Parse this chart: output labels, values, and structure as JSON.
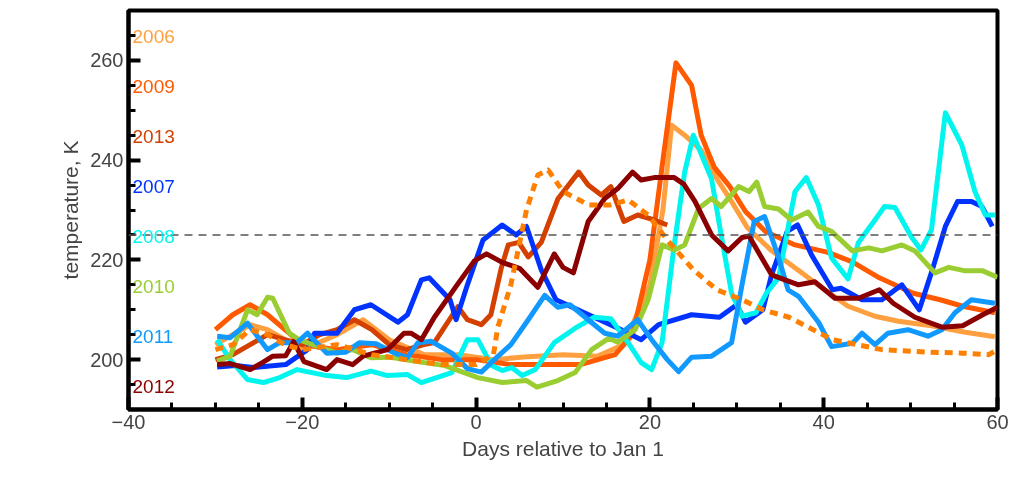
{
  "chart_data": {
    "type": "line",
    "xlabel": "Days relative to Jan 1",
    "ylabel": "temperature, K",
    "xlim": [
      -40,
      60
    ],
    "ylim": [
      190,
      270
    ],
    "xticks": [
      -40,
      -20,
      0,
      20,
      40,
      60
    ],
    "yticks": [
      200,
      220,
      240,
      260
    ],
    "grid": false,
    "legend": "left",
    "marker": "none",
    "line_style": "solid",
    "ref_lines": [
      {
        "axis": "y",
        "value": 225,
        "color": "#555555",
        "line_style": "dashed"
      }
    ],
    "series": [
      {
        "name": "2006",
        "color": "#ffa040",
        "x": [
          -30,
          -28,
          -26,
          -24,
          -22,
          -20,
          -16,
          -13,
          -10,
          -6,
          -2,
          2,
          6,
          10,
          14,
          17,
          18,
          20,
          21.5,
          22.5,
          24,
          25.9,
          27.8,
          29.4,
          31.2,
          33.9,
          37,
          40.1,
          42.8,
          45.9,
          48.6,
          52.4,
          56.3,
          59.7
        ],
        "values": [
          203,
          205,
          207,
          206,
          204,
          202,
          205,
          208,
          204,
          201,
          201,
          200,
          200.6,
          201,
          200.7,
          203,
          207,
          215,
          230,
          247,
          245,
          242,
          236,
          231.7,
          226.5,
          222,
          218,
          214,
          210.7,
          208.7,
          207.7,
          206.8,
          205.5,
          204.6
        ]
      },
      {
        "name": "2009",
        "color": "#ff5a00",
        "x": [
          -30,
          -28,
          -26,
          -24,
          -22,
          -20,
          -16,
          -12,
          -8,
          -4,
          0,
          4,
          8,
          12,
          16,
          18,
          20,
          21.5,
          23,
          24.8,
          25.9,
          27.4,
          29.2,
          31,
          33.3,
          36.7,
          40.5,
          43.3,
          46.4,
          50.3,
          53.4,
          56,
          59.7
        ],
        "values": [
          206,
          209,
          211,
          209,
          206,
          203,
          202,
          203,
          201,
          200,
          200,
          199,
          199,
          199,
          201,
          205,
          220,
          240,
          259.5,
          255,
          245,
          238.6,
          234.7,
          229.7,
          225.7,
          223,
          221.5,
          219.6,
          216.4,
          213.3,
          212,
          210.7,
          209.4
        ]
      },
      {
        "name": "2013",
        "color": "#d44000",
        "x": [
          -30,
          -28,
          -26,
          -24,
          -22,
          -20,
          -18,
          -16,
          -14,
          -12,
          -10,
          -8,
          -6,
          -4.8,
          -2.1,
          -1,
          0.6,
          1.7,
          2.9,
          3.7,
          4.9,
          6,
          7.5,
          9.4,
          11.8,
          12.9,
          14.4,
          15.5,
          17,
          18.6,
          20.5,
          22
        ],
        "values": [
          200,
          201,
          203,
          205,
          204,
          203,
          205,
          206,
          208,
          206,
          203,
          202,
          203,
          203.4,
          210.6,
          208,
          207,
          209,
          218.4,
          223,
          223.5,
          220.6,
          223.5,
          232.2,
          237.6,
          235,
          233,
          234.7,
          227.7,
          229,
          228,
          227
        ]
      },
      {
        "name": "2007",
        "color": "#0033ff",
        "x": [
          -29.8,
          -27.7,
          -25.6,
          -21.9,
          -19.4,
          -18.6,
          -16,
          -14,
          -12.1,
          -9,
          -7.9,
          -6.3,
          -5.4,
          -3,
          -2.3,
          -1,
          0.8,
          3,
          4.6,
          5.8,
          7.5,
          9.2,
          16.7,
          19,
          21,
          24.8,
          28,
          30,
          31,
          33,
          34,
          35.8,
          37,
          38.6,
          41,
          42,
          44.4,
          46.7,
          49,
          51,
          52.5,
          54,
          55.4,
          57,
          58.2,
          59.4
        ],
        "values": [
          198.5,
          198.8,
          198.4,
          199,
          202,
          205.3,
          205.3,
          210,
          211,
          207.5,
          209,
          216,
          216.4,
          212,
          208,
          215,
          224,
          227,
          225,
          226.7,
          218,
          212,
          206,
          204,
          207,
          209,
          208.5,
          211,
          207.5,
          210,
          217,
          225.7,
          227,
          221,
          214,
          214.3,
          212,
          212,
          215,
          210,
          218,
          226.7,
          231.7,
          231.7,
          230.7,
          226.7
        ]
      },
      {
        "name": "2008",
        "color": "#00f5ee",
        "x": [
          -29.8,
          -28.3,
          -26.3,
          -24.5,
          -22.6,
          -20.6,
          -17.2,
          -14.9,
          -12.1,
          -10.2,
          -7.9,
          -6.3,
          -2.8,
          -1,
          0.2,
          1.8,
          3,
          4.1,
          5.3,
          6.8,
          9,
          11.4,
          13.6,
          15.5,
          17.5,
          19,
          20.2,
          21.4,
          22.8,
          24,
          25,
          27.1,
          28.2,
          29.4,
          30.6,
          32.2,
          33.4,
          34.8,
          36.7,
          38,
          39.4,
          40.9,
          42.8,
          44,
          45.9,
          47,
          48.2,
          50.1,
          51.2,
          52.4,
          54,
          55.9,
          57.4,
          58.6,
          59.7
        ],
        "values": [
          204,
          200,
          196,
          195.4,
          196.4,
          198,
          196.8,
          196.4,
          197.7,
          196.8,
          197,
          195.4,
          197.4,
          204,
          204,
          198.8,
          197.8,
          198.4,
          196.8,
          198,
          203.4,
          206.3,
          208.5,
          208.2,
          203.4,
          199.4,
          198,
          203.4,
          223,
          237.6,
          245,
          236.2,
          225,
          213.3,
          208.7,
          209.4,
          213.3,
          216.4,
          233.7,
          236.5,
          231,
          220.4,
          216.2,
          223.5,
          228,
          230.7,
          230.5,
          224.6,
          222,
          226,
          249.5,
          243,
          233.7,
          229,
          229
        ]
      },
      {
        "name": "2010",
        "color": "#9acd32",
        "x": [
          -29.8,
          -28.3,
          -26.3,
          -25.2,
          -24,
          -23.4,
          -21.5,
          -20.4,
          -18.8,
          -16,
          -14.2,
          -12.1,
          -10,
          -7.5,
          -3.6,
          0.2,
          3,
          5.8,
          7,
          9.4,
          11.4,
          13.3,
          15.3,
          16.3,
          18.3,
          19.8,
          21.4,
          22.8,
          24,
          25.6,
          27.1,
          28.2,
          30.2,
          31.4,
          32.3,
          33.2,
          34.8,
          36.3,
          38.2,
          39.4,
          40.9,
          43.3,
          45.2,
          46.7,
          49,
          50.5,
          52.8,
          54.4,
          56.3,
          58.3,
          60
        ],
        "values": [
          199.7,
          200.7,
          210,
          209,
          212.5,
          212.3,
          205.3,
          204,
          203,
          201.3,
          202,
          200.4,
          200.5,
          199.8,
          198.8,
          196.4,
          195.4,
          195.8,
          194.5,
          195.8,
          197.4,
          202,
          204.3,
          203.5,
          206,
          212,
          223,
          222,
          223,
          230.3,
          232.3,
          230.7,
          234.7,
          233.7,
          235.6,
          230.7,
          230.2,
          228,
          229.6,
          226.7,
          225.7,
          221.8,
          222.4,
          221.8,
          223,
          221.8,
          217.4,
          218.5,
          217.8,
          217.8,
          216.5
        ]
      },
      {
        "name": "2011",
        "color": "#1199ff",
        "x": [
          -29.8,
          -28.3,
          -26.3,
          -24,
          -22.6,
          -20.6,
          -19.4,
          -17.2,
          -15,
          -13.4,
          -11.5,
          -9.4,
          -7.9,
          -6.7,
          -5.2,
          -2.8,
          -1,
          0.6,
          2.1,
          4,
          6,
          7.9,
          9.4,
          10.8,
          12.9,
          14.8,
          16.3,
          18.6,
          20.2,
          22,
          23.3,
          24.8,
          27.1,
          29.4,
          30.6,
          32,
          33.2,
          34.8,
          35.9,
          37.1,
          39.4,
          40.9,
          43.3,
          44.4,
          45.9,
          47.4,
          49.7,
          52,
          53.6,
          55.1,
          57,
          59.7
        ],
        "values": [
          204.7,
          204.4,
          207.3,
          202,
          203.4,
          203.4,
          205.3,
          201.3,
          201.5,
          203.4,
          203.2,
          201.3,
          200.4,
          203.4,
          203.7,
          201.3,
          198.2,
          197.5,
          200,
          203,
          208,
          212.9,
          210.5,
          211,
          208,
          205.3,
          204.7,
          208,
          204,
          200,
          197.6,
          200.5,
          200.7,
          203.4,
          215,
          227.7,
          228.7,
          220.5,
          214,
          212.7,
          207.5,
          202.6,
          203.3,
          205.3,
          203,
          205.3,
          206,
          204.7,
          206,
          209.4,
          212,
          211.3
        ]
      },
      {
        "name": "2012",
        "color": "#8b0000",
        "x": [
          -29.8,
          -28.3,
          -26,
          -24.5,
          -23.4,
          -21.9,
          -21,
          -19.8,
          -17.2,
          -16,
          -14.2,
          -13,
          -10.2,
          -8.3,
          -7.5,
          -6.3,
          -4.8,
          -2.1,
          -0.2,
          1.2,
          3,
          5,
          7.1,
          9,
          10,
          11.2,
          12.9,
          14.8,
          16.3,
          18,
          19,
          20.5,
          22.8,
          23.9,
          25.2,
          27.1,
          29,
          30.6,
          31.4,
          34,
          37.1,
          39,
          41.3,
          44,
          46.4,
          48,
          50.5,
          53.6,
          56,
          58.3,
          60
        ],
        "values": [
          199,
          199.2,
          198,
          199.5,
          200.7,
          200.8,
          203.6,
          199.6,
          198,
          200,
          199,
          200.7,
          202,
          205.3,
          205.3,
          204,
          208.5,
          215.2,
          219.8,
          221.2,
          219.5,
          218.3,
          214.5,
          221.2,
          218.5,
          217.4,
          227.7,
          232.3,
          234.3,
          237.6,
          236,
          236.5,
          236.5,
          235.2,
          231.7,
          225,
          221.8,
          224.5,
          224.8,
          217,
          215,
          215.6,
          212.3,
          212.3,
          214,
          211.3,
          208.5,
          206.5,
          206.8,
          209,
          210.5
        ]
      },
      {
        "color": "#ff7f00",
        "line_style": "dashed",
        "x": [
          -30,
          -28,
          -26,
          -24,
          -22,
          -20,
          -16,
          -12,
          -8,
          -4,
          0,
          2,
          2.5,
          4,
          5.8,
          7.1,
          8.3,
          10,
          13,
          15.4,
          17.5,
          19.8,
          22,
          25,
          27.7,
          30.6,
          33,
          36,
          41,
          46.7,
          52,
          56,
          59,
          60
        ],
        "values": [
          202,
          203,
          206,
          205,
          203,
          202,
          203,
          201,
          200,
          199,
          199,
          201,
          206.5,
          215,
          230,
          237,
          238,
          233.7,
          231,
          231,
          232,
          229,
          224,
          218,
          214,
          212,
          210,
          208.5,
          204,
          202,
          201.5,
          201.3,
          201,
          202
        ]
      }
    ]
  }
}
